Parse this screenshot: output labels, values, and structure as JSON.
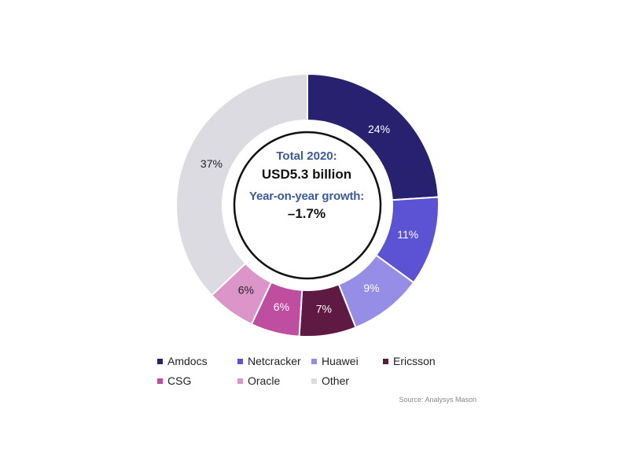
{
  "chart_data": {
    "type": "pie",
    "style": "donut",
    "center": {
      "total_label": "Total 2020:",
      "total_value": "USD5.3 billion",
      "growth_label": "Year-on-year growth:",
      "growth_value": "–1.7%"
    },
    "slices": [
      {
        "name": "Amdocs",
        "value": 24,
        "label": "24%",
        "color": "#27216f",
        "label_color": "#ffffff"
      },
      {
        "name": "Netcracker",
        "value": 11,
        "label": "11%",
        "color": "#5b52d4",
        "label_color": "#ffffff"
      },
      {
        "name": "Huawei",
        "value": 9,
        "label": "9%",
        "color": "#958de6",
        "label_color": "#ffffff"
      },
      {
        "name": "Ericsson",
        "value": 7,
        "label": "7%",
        "color": "#5e1a43",
        "label_color": "#ffffff"
      },
      {
        "name": "CSG",
        "value": 6,
        "label": "6%",
        "color": "#bf4ea0",
        "label_color": "#ffffff"
      },
      {
        "name": "Oracle",
        "value": 6,
        "label": "6%",
        "color": "#dc95c8",
        "label_color": "#222222"
      },
      {
        "name": "Other",
        "value": 37,
        "label": "37%",
        "color": "#dcdbe2",
        "label_color": "#222222"
      }
    ],
    "legend_position": "bottom",
    "source": "Source: Analysys Mason"
  }
}
